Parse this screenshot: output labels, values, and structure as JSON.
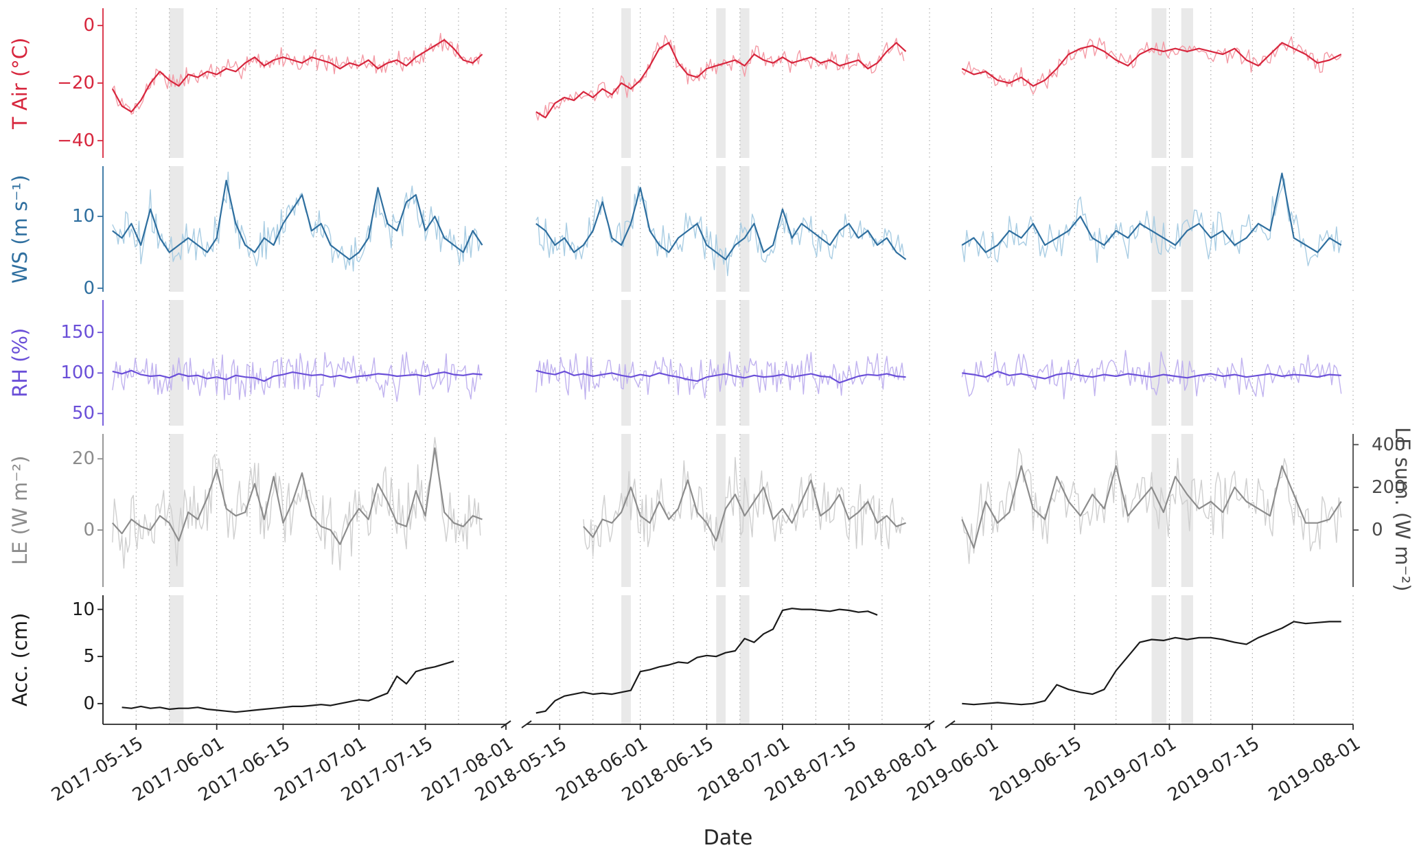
{
  "chart_data": {
    "type": "line",
    "xlabel": "Date",
    "grid": "dotted vertical gridlines, weekly",
    "legend": "none",
    "panels": [
      {
        "year": "2017",
        "start_date": "2017-05-08",
        "span_days": 85,
        "major_ticks": [
          {
            "day": 7,
            "label": "2017-05-15"
          },
          {
            "day": 24,
            "label": "2017-06-01"
          },
          {
            "day": 38,
            "label": "2017-06-15"
          },
          {
            "day": 54,
            "label": "2017-07-01"
          },
          {
            "day": 68,
            "label": "2017-07-15"
          },
          {
            "day": 85,
            "label": "2017-08-01"
          }
        ],
        "minor_gridlines": [
          7,
          14,
          24,
          31,
          38,
          45,
          54,
          61,
          68,
          75,
          85
        ],
        "shaded_bands": [
          [
            14,
            17
          ]
        ]
      },
      {
        "year": "2018",
        "start_date": "2018-05-08",
        "span_days": 85,
        "major_ticks": [
          {
            "day": 7,
            "label": "2018-05-15"
          },
          {
            "day": 24,
            "label": "2018-06-01"
          },
          {
            "day": 38,
            "label": "2018-06-15"
          },
          {
            "day": 54,
            "label": "2018-07-01"
          },
          {
            "day": 68,
            "label": "2018-07-15"
          },
          {
            "day": 85,
            "label": "2018-08-01"
          }
        ],
        "minor_gridlines": [
          7,
          14,
          24,
          31,
          38,
          45,
          54,
          61,
          68,
          75,
          85
        ],
        "shaded_bands": [
          [
            20,
            22
          ],
          [
            40,
            42
          ],
          [
            45,
            47
          ]
        ]
      },
      {
        "year": "2019",
        "start_date": "2019-05-25",
        "span_days": 68,
        "major_ticks": [
          {
            "day": 7,
            "label": "2019-06-01"
          },
          {
            "day": 21,
            "label": "2019-06-15"
          },
          {
            "day": 37,
            "label": "2019-07-01"
          },
          {
            "day": 51,
            "label": "2019-07-15"
          },
          {
            "day": 68,
            "label": "2019-08-01"
          }
        ],
        "minor_gridlines": [
          7,
          14,
          21,
          28,
          37,
          44,
          51,
          58,
          68
        ],
        "shaded_bands": [
          [
            34,
            36.5
          ],
          [
            39,
            41
          ]
        ]
      }
    ],
    "rows": [
      {
        "id": "tair",
        "label": "T Air (°C)",
        "color": "#d7263d",
        "raw_color": "#f49aa5",
        "ylim": [
          -46,
          6
        ],
        "yticks": [
          0,
          -20,
          -40
        ],
        "noise_amp": 4.5,
        "clamp": null,
        "series": {
          "2017": {
            "start_day": 2,
            "step": 2,
            "values": [
              -22,
              -28,
              -30,
              -26,
              -20,
              -16,
              -19,
              -21,
              -17,
              -18,
              -16,
              -17,
              -15,
              -16,
              -13,
              -11,
              -14,
              -12,
              -11,
              -12,
              -13,
              -11,
              -12,
              -13,
              -15,
              -13,
              -14,
              -12,
              -15,
              -13,
              -12,
              -14,
              -11,
              -9,
              -7,
              -5,
              -8,
              -12,
              -13,
              -10
            ]
          },
          "2018": {
            "start_day": 2,
            "step": 2,
            "values": [
              -30,
              -32,
              -27,
              -25,
              -26,
              -23,
              -25,
              -22,
              -24,
              -20,
              -22,
              -19,
              -14,
              -8,
              -6,
              -13,
              -17,
              -18,
              -15,
              -14,
              -13,
              -12,
              -14,
              -10,
              -12,
              -13,
              -11,
              -13,
              -12,
              -11,
              -13,
              -12,
              -14,
              -13,
              -12,
              -15,
              -13,
              -9,
              -6,
              -9
            ]
          },
          "2019": {
            "start_day": 2,
            "step": 2,
            "values": [
              -15,
              -17,
              -16,
              -19,
              -20,
              -18,
              -21,
              -19,
              -15,
              -10,
              -8,
              -7,
              -9,
              -12,
              -14,
              -10,
              -8,
              -9,
              -8,
              -9,
              -8,
              -9,
              -10,
              -8,
              -12,
              -14,
              -10,
              -6,
              -8,
              -10,
              -13,
              -12,
              -10
            ]
          }
        }
      },
      {
        "id": "ws",
        "label": "WS (m s⁻¹)",
        "color": "#2f6f9f",
        "raw_color": "#a9cde3",
        "ylim": [
          -0.5,
          17
        ],
        "yticks": [
          10,
          0
        ],
        "noise_amp": 3.5,
        "clamp": [
          0.2,
          16.5
        ],
        "series": {
          "2017": {
            "start_day": 2,
            "step": 2,
            "values": [
              8,
              7,
              9,
              6,
              11,
              7,
              5,
              6,
              7,
              6,
              5,
              7,
              15,
              9,
              6,
              5,
              7,
              6,
              9,
              11,
              13,
              8,
              9,
              6,
              5,
              4,
              5,
              7,
              14,
              9,
              8,
              12,
              13,
              8,
              10,
              7,
              6,
              5,
              8,
              6
            ]
          },
          "2018": {
            "start_day": 2,
            "step": 2,
            "values": [
              9,
              8,
              6,
              7,
              5,
              6,
              8,
              12,
              7,
              6,
              9,
              14,
              8,
              6,
              5,
              7,
              8,
              9,
              6,
              5,
              4,
              6,
              7,
              9,
              5,
              6,
              11,
              7,
              9,
              8,
              7,
              6,
              8,
              9,
              7,
              8,
              6,
              7,
              5,
              4
            ]
          },
          "2019": {
            "start_day": 2,
            "step": 2,
            "values": [
              6,
              7,
              5,
              6,
              8,
              7,
              9,
              6,
              7,
              8,
              10,
              7,
              6,
              8,
              7,
              9,
              8,
              7,
              6,
              8,
              9,
              7,
              8,
              6,
              7,
              9,
              8,
              16,
              7,
              6,
              5,
              7,
              6
            ]
          }
        }
      },
      {
        "id": "rh",
        "label": "RH (%)",
        "color": "#6a4fd8",
        "raw_color": "#c0b2ef",
        "ylim": [
          35,
          190
        ],
        "yticks": [
          150,
          100,
          50
        ],
        "noise_amp": 32,
        "clamp": [
          45,
          186
        ],
        "series": {
          "2017": {
            "start_day": 2,
            "step": 2,
            "values": [
              102,
              99,
              103,
              98,
              96,
              97,
              94,
              99,
              96,
              97,
              93,
              95,
              92,
              97,
              95,
              94,
              90,
              96,
              98,
              101,
              99,
              97,
              98,
              95,
              97,
              94,
              96,
              97,
              99,
              98,
              96,
              97,
              98,
              96,
              99,
              101,
              98,
              97,
              99,
              98
            ]
          },
          "2018": {
            "start_day": 2,
            "step": 2,
            "values": [
              103,
              100,
              98,
              102,
              97,
              99,
              96,
              98,
              100,
              97,
              95,
              98,
              96,
              100,
              97,
              95,
              92,
              90,
              95,
              97,
              99,
              96,
              94,
              97,
              95,
              96,
              98,
              95,
              97,
              99,
              96,
              95,
              88,
              92,
              96,
              98,
              97,
              99,
              96,
              95
            ]
          },
          "2019": {
            "start_day": 2,
            "step": 2,
            "values": [
              100,
              98,
              95,
              102,
              97,
              99,
              96,
              93,
              98,
              100,
              97,
              95,
              98,
              96,
              99,
              97,
              95,
              98,
              96,
              94,
              97,
              99,
              96,
              98,
              95,
              97,
              99,
              96,
              98,
              97,
              95,
              98,
              97
            ]
          }
        }
      },
      {
        "id": "le",
        "label": "LE (W m⁻²)",
        "color": "#8c8c8c",
        "raw_color": "#cfcfcf",
        "ylim": [
          -16,
          27
        ],
        "yticks": [
          20,
          0
        ],
        "noise_amp": 11,
        "clamp": [
          -15,
          26
        ],
        "series": {
          "2017": {
            "start_day": 2,
            "step": 2,
            "values": [
              2,
              -1,
              3,
              1,
              0,
              4,
              2,
              -3,
              5,
              3,
              9,
              17,
              6,
              4,
              5,
              13,
              3,
              15,
              2,
              8,
              16,
              4,
              1,
              0,
              -4,
              2,
              6,
              3,
              13,
              8,
              2,
              1,
              11,
              4,
              23,
              5,
              2,
              1,
              4,
              3
            ]
          },
          "2018": {
            "start_day": 12,
            "step": 2,
            "values": [
              1,
              -2,
              3,
              2,
              5,
              12,
              4,
              2,
              8,
              3,
              6,
              14,
              5,
              2,
              -3,
              6,
              10,
              4,
              8,
              12,
              3,
              6,
              2,
              8,
              14,
              4,
              6,
              10,
              3,
              5,
              8,
              2,
              4,
              1,
              2
            ]
          },
          "2019": {
            "start_day": 2,
            "step": 2,
            "values": [
              3,
              -5,
              8,
              2,
              5,
              18,
              6,
              3,
              15,
              8,
              4,
              10,
              6,
              18,
              4,
              8,
              12,
              5,
              15,
              10,
              6,
              8,
              5,
              12,
              8,
              6,
              4,
              18,
              10,
              2,
              2,
              3,
              8
            ]
          }
        }
      },
      {
        "id": "acc",
        "label": "Acc. (cm)",
        "color": "#1a1a1a",
        "raw_color": null,
        "ylim": [
          -2.2,
          11.5
        ],
        "yticks": [
          10,
          5,
          0
        ],
        "noise_amp": 0,
        "clamp": null,
        "series": {
          "2017": {
            "start_day": 4,
            "step": 2,
            "values": [
              -0.4,
              -0.5,
              -0.3,
              -0.5,
              -0.4,
              -0.6,
              -0.5,
              -0.5,
              -0.4,
              -0.6,
              -0.7,
              -0.8,
              -0.9,
              -0.8,
              -0.7,
              -0.6,
              -0.5,
              -0.4,
              -0.3,
              -0.3,
              -0.2,
              -0.1,
              -0.2,
              0.0,
              0.2,
              0.4,
              0.3,
              0.7,
              1.1,
              2.9,
              2.1,
              3.4,
              3.7,
              3.9,
              4.2,
              4.5
            ]
          },
          "2018": {
            "start_day": 2,
            "step": 2,
            "values": [
              -1.0,
              -0.8,
              0.3,
              0.8,
              1.0,
              1.2,
              1.0,
              1.1,
              1.0,
              1.2,
              1.4,
              3.4,
              3.6,
              3.9,
              4.1,
              4.4,
              4.3,
              4.9,
              5.1,
              5.0,
              5.4,
              5.6,
              6.9,
              6.5,
              7.4,
              7.9,
              9.9,
              10.1,
              10.0,
              10.0,
              9.9,
              9.8,
              10.0,
              9.9,
              9.7,
              9.8,
              9.4
            ]
          },
          "2019": {
            "start_day": 2,
            "step": 2,
            "values": [
              0.0,
              -0.1,
              0.0,
              0.1,
              0.0,
              -0.1,
              0.0,
              0.3,
              2.0,
              1.5,
              1.2,
              1.0,
              1.5,
              3.5,
              5.0,
              6.5,
              6.8,
              6.7,
              7.0,
              6.8,
              7.0,
              7.0,
              6.8,
              6.5,
              6.3,
              7.0,
              7.5,
              8.0,
              8.7,
              8.5,
              8.6,
              8.7,
              8.7
            ]
          }
        }
      }
    ],
    "right_axis": {
      "label": "LE sum. (W m⁻²)",
      "attached_row": "le",
      "ticks": [
        {
          "left_value": 24,
          "label": "400"
        },
        {
          "left_value": 12,
          "label": "200"
        },
        {
          "left_value": 0,
          "label": "0"
        }
      ]
    }
  }
}
